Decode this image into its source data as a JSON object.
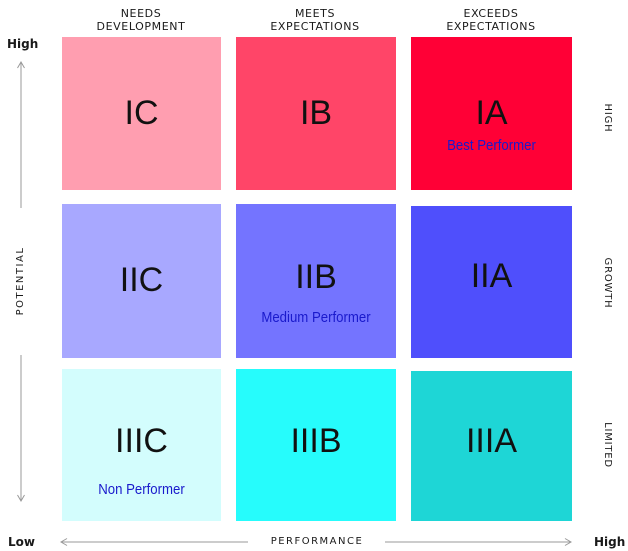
{
  "columns": [
    {
      "line1": "NEEDS",
      "line2": "DEVELOPMENT"
    },
    {
      "line1": "MEETS",
      "line2": "EXPECTATIONS"
    },
    {
      "line1": "EXCEEDS",
      "line2": "EXPECTATIONS"
    }
  ],
  "rows": [
    "HIGH",
    "GROWTH",
    "LIMITED"
  ],
  "axes": {
    "potential": "POTENTIAL",
    "potential_high": "High",
    "performance": "PERFORMANCE",
    "low": "Low",
    "performance_high": "High"
  },
  "cells": {
    "ic": {
      "code": "IC",
      "note": "",
      "color": "#ff9eb0"
    },
    "ib": {
      "code": "IB",
      "note": "",
      "color": "#ff4568"
    },
    "ia": {
      "code": "IA",
      "note": "Best Performer",
      "color": "#ff0036"
    },
    "iic": {
      "code": "IIC",
      "note": "",
      "color": "#a8a8ff"
    },
    "iib": {
      "code": "IIB",
      "note": "Medium Performer",
      "color": "#7474ff"
    },
    "iia": {
      "code": "IIA",
      "note": "",
      "color": "#4f4ffc"
    },
    "iiic": {
      "code": "IIIC",
      "note": "Non Performer",
      "color": "#d3fdfd"
    },
    "iiib": {
      "code": "IIIB",
      "note": "",
      "color": "#26fcfc"
    },
    "iiia": {
      "code": "IIIA",
      "note": "",
      "color": "#1ed6d6"
    }
  },
  "note_color": "#1a1acc",
  "arrow_color": "#999999"
}
